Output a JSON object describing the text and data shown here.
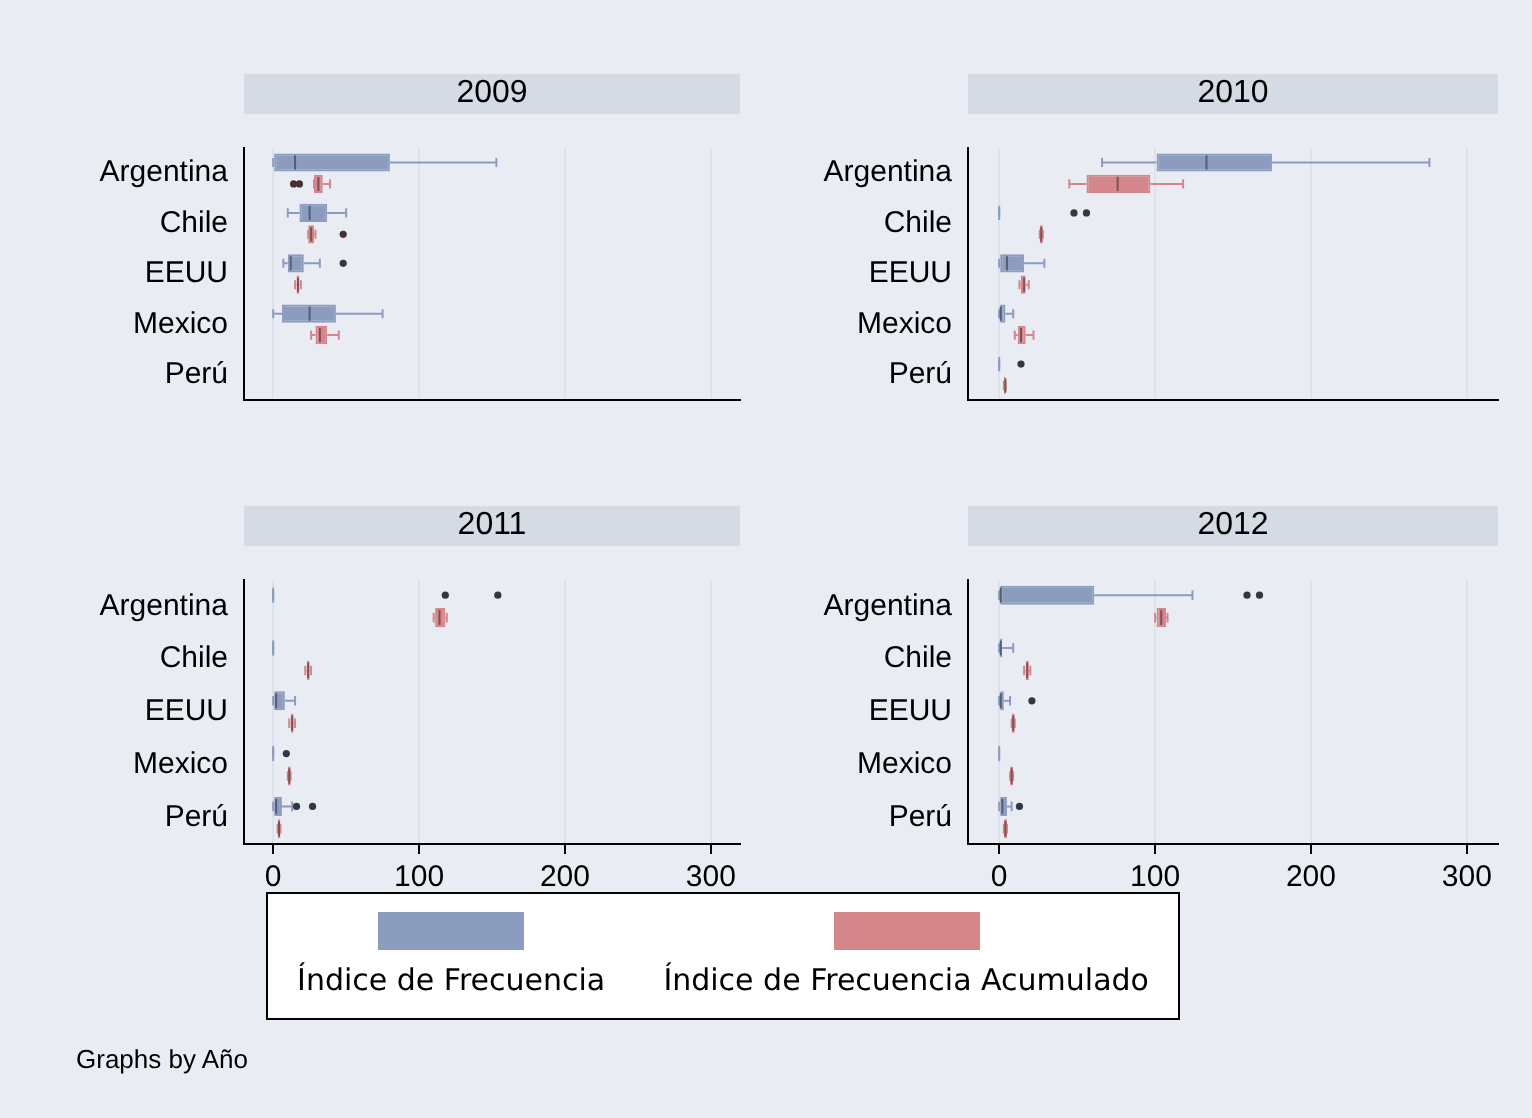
{
  "chart_data": [
    {
      "type": "box",
      "title": "2009",
      "orientation": "horizontal",
      "categories": [
        "Argentina",
        "Chile",
        "EEUU",
        "Mexico",
        "Perú"
      ],
      "xlim": [
        -20,
        320
      ],
      "xticks": [
        0,
        100,
        200,
        300
      ],
      "grid": "x",
      "tick_labels": "y",
      "legend": "bottom",
      "series": [
        {
          "name": "Índice de Frecuencia",
          "color": "#8c9cbf",
          "boxes": [
            {
              "low": 0,
              "q1": 0,
              "median": 15,
              "q3": 80,
              "high": 153
            },
            {
              "low": 10,
              "q1": 18,
              "median": 25,
              "q3": 37,
              "high": 50
            },
            {
              "low": 7,
              "q1": 10,
              "median": 12,
              "q3": 21,
              "high": 32,
              "outliers": [
                48
              ]
            },
            {
              "low": 0,
              "q1": 6,
              "median": 25,
              "q3": 43,
              "high": 75
            },
            null
          ]
        },
        {
          "name": "Índice de Frecuencia Acumulado",
          "color": "#d4868b",
          "boxes": [
            {
              "low": 28,
              "q1": 28,
              "median": 31,
              "q3": 34,
              "high": 39,
              "outliers": [
                14,
                18
              ]
            },
            {
              "low": 24,
              "q1": 24,
              "median": 26,
              "q3": 28,
              "high": 29,
              "outliers": [
                48
              ]
            },
            {
              "low": 15,
              "q1": 16,
              "median": 17,
              "q3": 18,
              "high": 19
            },
            {
              "low": 26,
              "q1": 29,
              "median": 32,
              "q3": 37,
              "high": 45
            },
            null
          ]
        }
      ]
    },
    {
      "type": "box",
      "title": "2010",
      "orientation": "horizontal",
      "categories": [
        "Argentina",
        "Chile",
        "EEUU",
        "Mexico",
        "Perú"
      ],
      "xlim": [
        -20,
        320
      ],
      "xticks": [
        0,
        100,
        200,
        300
      ],
      "grid": "x",
      "tick_labels": "y",
      "series": [
        {
          "color": "#8c9cbf",
          "boxes": [
            {
              "low": 66,
              "q1": 101,
              "median": 133,
              "q3": 175,
              "high": 276
            },
            {
              "low": 0,
              "q1": 0,
              "median": 0,
              "q3": 0,
              "high": 0,
              "outliers": [
                48,
                56
              ]
            },
            {
              "low": 0,
              "q1": 0,
              "median": 5,
              "q3": 16,
              "high": 29
            },
            {
              "low": 0,
              "q1": 0,
              "median": 1,
              "q3": 4,
              "high": 9
            },
            {
              "low": 0,
              "q1": 0,
              "median": 0,
              "q3": 0,
              "high": 0,
              "outliers": [
                14
              ]
            }
          ]
        },
        {
          "color": "#d4868b",
          "boxes": [
            {
              "low": 45,
              "q1": 56,
              "median": 76,
              "q3": 97,
              "high": 118
            },
            {
              "low": 26,
              "q1": 26,
              "median": 27,
              "q3": 28,
              "high": 28
            },
            {
              "low": 13,
              "q1": 14,
              "median": 16,
              "q3": 17,
              "high": 19
            },
            {
              "low": 10,
              "q1": 12,
              "median": 14,
              "q3": 17,
              "high": 22
            },
            {
              "low": 3,
              "q1": 3,
              "median": 4,
              "q3": 4,
              "high": 4
            }
          ]
        }
      ]
    },
    {
      "type": "box",
      "title": "2011",
      "orientation": "horizontal",
      "categories": [
        "Argentina",
        "Chile",
        "EEUU",
        "Mexico",
        "Perú"
      ],
      "xlim": [
        -20,
        320
      ],
      "xticks": [
        0,
        100,
        200,
        300
      ],
      "grid": "x",
      "series": [
        {
          "color": "#8c9cbf",
          "boxes": [
            {
              "low": 0,
              "q1": 0,
              "median": 0,
              "q3": 0,
              "high": 0,
              "outliers": [
                118,
                154
              ]
            },
            {
              "low": 0,
              "q1": 0,
              "median": 0,
              "q3": 0,
              "high": 0
            },
            {
              "low": 0,
              "q1": 0,
              "median": 2,
              "q3": 8,
              "high": 15
            },
            {
              "low": 0,
              "q1": 0,
              "median": 0,
              "q3": 0,
              "high": 0,
              "outliers": [
                9
              ]
            },
            {
              "low": 0,
              "q1": 0,
              "median": 2,
              "q3": 6,
              "high": 13,
              "outliers": [
                16,
                27
              ]
            }
          ]
        },
        {
          "color": "#d4868b",
          "boxes": [
            {
              "low": 110,
              "q1": 111,
              "median": 114,
              "q3": 118,
              "high": 119
            },
            {
              "low": 22,
              "q1": 23,
              "median": 24,
              "q3": 25,
              "high": 26
            },
            {
              "low": 11,
              "q1": 12,
              "median": 13,
              "q3": 14,
              "high": 15
            },
            {
              "low": 10,
              "q1": 10,
              "median": 11,
              "q3": 12,
              "high": 12
            },
            {
              "low": 3,
              "q1": 3,
              "median": 4,
              "q3": 5,
              "high": 5
            }
          ]
        }
      ]
    },
    {
      "type": "box",
      "title": "2012",
      "orientation": "horizontal",
      "categories": [
        "Argentina",
        "Chile",
        "EEUU",
        "Mexico",
        "Perú"
      ],
      "xlim": [
        -20,
        320
      ],
      "xticks": [
        0,
        100,
        200,
        300
      ],
      "grid": "x",
      "annotations": [
        "Graphs by Año"
      ],
      "series": [
        {
          "color": "#8c9cbf",
          "boxes": [
            {
              "low": 0,
              "q1": 0,
              "median": 1,
              "q3": 61,
              "high": 124,
              "outliers": [
                159,
                167
              ]
            },
            {
              "low": 0,
              "q1": 0,
              "median": 1,
              "q3": 2,
              "high": 9
            },
            {
              "low": 0,
              "q1": 0,
              "median": 1,
              "q3": 3,
              "high": 7,
              "outliers": [
                21
              ]
            },
            {
              "low": 0,
              "q1": 0,
              "median": 0,
              "q3": 0,
              "high": 0
            },
            {
              "low": 0,
              "q1": 0,
              "median": 2,
              "q3": 5,
              "high": 8,
              "outliers": [
                13
              ]
            }
          ]
        },
        {
          "color": "#d4868b",
          "boxes": [
            {
              "low": 100,
              "q1": 101,
              "median": 104,
              "q3": 107,
              "high": 108
            },
            {
              "low": 16,
              "q1": 17,
              "median": 18,
              "q3": 19,
              "high": 20
            },
            {
              "low": 8,
              "q1": 8,
              "median": 9,
              "q3": 10,
              "high": 10
            },
            {
              "low": 7,
              "q1": 7,
              "median": 8,
              "q3": 9,
              "high": 9
            },
            {
              "low": 3,
              "q1": 3,
              "median": 4,
              "q3": 5,
              "high": 5
            }
          ]
        }
      ]
    }
  ]
}
